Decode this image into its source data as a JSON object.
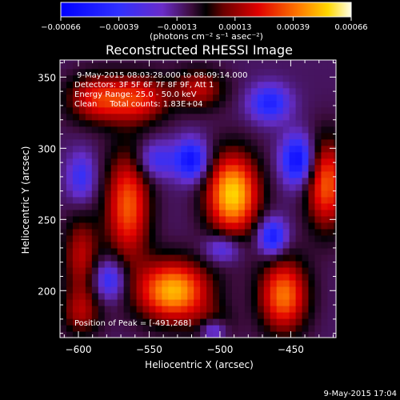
{
  "chart_data": {
    "type": "heatmap",
    "title": "Reconstructed RHESSI Image",
    "xlabel": "Heliocentric X (arcsec)",
    "ylabel": "Heliocentric Y (arcsec)",
    "xlim": [
      -613,
      -418
    ],
    "ylim": [
      167,
      362
    ],
    "xticks": [
      -600,
      -550,
      -500,
      -450
    ],
    "yticks": [
      200,
      250,
      300,
      350
    ],
    "colorbar": {
      "ticks": [
        "-0.00066",
        "-0.00039",
        "-0.00013",
        "0.00013",
        "0.00039",
        "0.00066"
      ],
      "unit_label": "(photons cm⁻² s⁻¹ asec⁻²)",
      "min": -0.00066,
      "max": 0.00066
    },
    "annotations": [
      "9-May-2015 08:03:28.000 to 08:09:14.000",
      "Detectors: 3F 5F 6F 7F 8F 9F, Att 1",
      "Energy Range: 25.0 - 50.0 keV",
      "Clean     Total counts: 1.83E+04",
      "Position of Peak = [-491,268]"
    ],
    "sources": [
      {
        "x": -491,
        "y": 268,
        "amp": 1.0,
        "sx": 13,
        "sy": 20
      },
      {
        "x": -533,
        "y": 200,
        "amp": 0.93,
        "sx": 18,
        "sy": 15
      },
      {
        "x": -455,
        "y": 197,
        "amp": 0.78,
        "sx": 12,
        "sy": 18
      },
      {
        "x": -565,
        "y": 260,
        "amp": 0.72,
        "sx": 11,
        "sy": 27
      },
      {
        "x": -585,
        "y": 335,
        "amp": 0.6,
        "sx": 16,
        "sy": 12
      },
      {
        "x": -555,
        "y": 335,
        "amp": 0.5,
        "sx": 14,
        "sy": 12
      },
      {
        "x": -515,
        "y": 342,
        "amp": 0.45,
        "sx": 13,
        "sy": 10
      },
      {
        "x": -425,
        "y": 275,
        "amp": 0.72,
        "sx": 10,
        "sy": 22
      },
      {
        "x": -598,
        "y": 225,
        "amp": 0.45,
        "sx": 9,
        "sy": 20
      },
      {
        "x": -505,
        "y": 175,
        "amp": 0.35,
        "sx": 10,
        "sy": 9
      },
      {
        "x": -598,
        "y": 185,
        "amp": 0.38,
        "sx": 10,
        "sy": 12
      },
      {
        "x": -520,
        "y": 292,
        "amp": -0.7,
        "sx": 8,
        "sy": 10
      },
      {
        "x": -545,
        "y": 292,
        "amp": -0.4,
        "sx": 10,
        "sy": 9
      },
      {
        "x": -445,
        "y": 292,
        "amp": -0.75,
        "sx": 8,
        "sy": 12
      },
      {
        "x": -463,
        "y": 238,
        "amp": -0.65,
        "sx": 7,
        "sy": 9
      },
      {
        "x": -498,
        "y": 230,
        "amp": -0.4,
        "sx": 9,
        "sy": 7
      },
      {
        "x": -578,
        "y": 208,
        "amp": -0.5,
        "sx": 8,
        "sy": 10
      },
      {
        "x": -505,
        "y": 173,
        "amp": -0.6,
        "sx": 7,
        "sy": 6
      },
      {
        "x": -465,
        "y": 332,
        "amp": -0.55,
        "sx": 10,
        "sy": 9
      },
      {
        "x": -598,
        "y": 280,
        "amp": -0.4,
        "sx": 7,
        "sy": 12
      }
    ]
  },
  "footer": {
    "timestamp": "9-May-2015 17:04"
  }
}
